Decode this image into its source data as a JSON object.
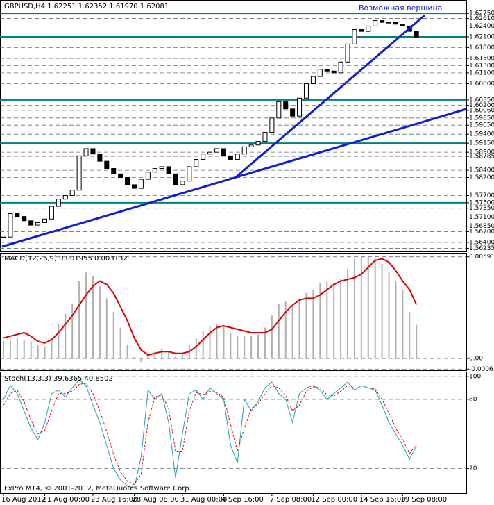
{
  "chart_data": [
    {
      "type": "price",
      "title": "GBPUSD,H4  1.62251 1.62352 1.61970 1.62081",
      "annotation": "Возможная вершина",
      "color": "#000000",
      "values": [
        1.5655,
        1.572,
        1.5712,
        1.57,
        1.5688,
        1.5695,
        1.5705,
        1.574,
        1.576,
        1.577,
        1.5785,
        1.588,
        1.59,
        1.5885,
        1.5865,
        1.5845,
        1.583,
        1.582,
        1.58,
        1.579,
        1.5815,
        1.5835,
        1.5845,
        1.585,
        1.583,
        1.58,
        1.581,
        1.585,
        1.587,
        1.5885,
        1.589,
        1.59,
        1.588,
        1.587,
        1.5885,
        1.5905,
        1.591,
        1.592,
        1.5945,
        1.5985,
        1.603,
        1.601,
        1.599,
        1.604,
        1.608,
        1.61,
        1.612,
        1.6115,
        1.611,
        1.614,
        1.619,
        1.623,
        1.6225,
        1.624,
        1.6255,
        1.625,
        1.625,
        1.6245,
        1.624,
        1.6225,
        1.6208
      ],
      "ylim": [
        1.5615,
        1.631
      ],
      "yticks": [
        {
          "value": 1.6275,
          "label": "1.62750"
        },
        {
          "value": 1.6261,
          "label": "1.62610"
        },
        {
          "value": 1.624,
          "label": "1.62400"
        },
        {
          "value": 1.621,
          "label": "1.62100"
        },
        {
          "value": 1.618,
          "label": "1.61800"
        },
        {
          "value": 1.615,
          "label": "1.61500"
        },
        {
          "value": 1.613,
          "label": "1.61300"
        },
        {
          "value": 1.611,
          "label": "1.61100"
        },
        {
          "value": 1.608,
          "label": "1.60800"
        },
        {
          "value": 1.6035,
          "label": "1.60350"
        },
        {
          "value": 1.602,
          "label": "1.60200"
        },
        {
          "value": 1.6006,
          "label": "1.60060"
        },
        {
          "value": 1.5985,
          "label": "1.59850"
        },
        {
          "value": 1.5965,
          "label": "1.59650"
        },
        {
          "value": 1.594,
          "label": "1.59400"
        },
        {
          "value": 1.5915,
          "label": "1.59150"
        },
        {
          "value": 1.589,
          "label": "1.58900"
        },
        {
          "value": 1.58785,
          "label": "1.58785"
        },
        {
          "value": 1.584,
          "label": "1.58400"
        },
        {
          "value": 1.582,
          "label": "1.58200"
        },
        {
          "value": 1.577,
          "label": "1.57700"
        },
        {
          "value": 1.575,
          "label": "1.57500"
        },
        {
          "value": 1.5735,
          "label": "1.57350"
        },
        {
          "value": 1.571,
          "label": "1.57100"
        },
        {
          "value": 1.5685,
          "label": "1.56850"
        },
        {
          "value": 1.567,
          "label": "1.56700"
        },
        {
          "value": 1.564,
          "label": "1.56400"
        },
        {
          "value": 1.56235,
          "label": "1.56235"
        }
      ],
      "levels": [
        1.6275,
        1.621,
        1.6035,
        1.5915,
        1.575
      ],
      "level_color": "#008080"
    },
    {
      "type": "macd",
      "title": "MACD(12,26,9) 0.001955 0.003132",
      "series": [
        {
          "color": "#b0b0b0",
          "values": [
            0.001,
            0.0011,
            0.0012,
            0.0011,
            0.001,
            0.0008,
            0.0007,
            0.0012,
            0.002,
            0.0026,
            0.0032,
            0.0045,
            0.005,
            0.0048,
            0.0042,
            0.0035,
            0.0027,
            0.0018,
            0.0008,
            0.0001,
            -0.0002,
            0.0002,
            0.0004,
            0.0006,
            0.0004,
            0.0001,
            0.0003,
            0.0008,
            0.0012,
            0.0016,
            0.0019,
            0.002,
            0.0019,
            0.0015,
            0.0013,
            0.0013,
            0.0013,
            0.0014,
            0.0018,
            0.0025,
            0.0032,
            0.0033,
            0.0031,
            0.0034,
            0.0038,
            0.004,
            0.0044,
            0.0045,
            0.0044,
            0.0046,
            0.0052,
            0.0058,
            0.0059,
            0.0059,
            0.0058,
            0.0055,
            0.005,
            0.0045,
            0.004,
            0.0027,
            0.001955
          ]
        },
        {
          "color": "#e00000",
          "values": [
            0.0012,
            0.0013,
            0.0014,
            0.0015,
            0.0013,
            0.001,
            0.0009,
            0.0011,
            0.0015,
            0.002,
            0.0025,
            0.0031,
            0.0037,
            0.0042,
            0.0045,
            0.0043,
            0.0038,
            0.003,
            0.0022,
            0.0012,
            0.0005,
            0.0002,
            0.0003,
            0.0004,
            0.0004,
            0.0003,
            0.0003,
            0.0004,
            0.0007,
            0.0011,
            0.0015,
            0.0018,
            0.0019,
            0.0018,
            0.0017,
            0.0016,
            0.0015,
            0.0015,
            0.0015,
            0.0017,
            0.0022,
            0.0027,
            0.0031,
            0.0034,
            0.0035,
            0.0035,
            0.0037,
            0.004,
            0.0043,
            0.0045,
            0.0046,
            0.0047,
            0.0049,
            0.0053,
            0.0057,
            0.0058,
            0.0056,
            0.0051,
            0.0045,
            0.004,
            0.003132
          ]
        }
      ],
      "ylim": [
        -0.00068,
        0.0061
      ],
      "yticks": [
        {
          "value": 0.00591,
          "label": "0.00591"
        },
        {
          "value": 0,
          "label": "0.00"
        },
        {
          "value": -0.00061,
          "label": "-0.00061"
        }
      ]
    },
    {
      "type": "line",
      "title": "Stoch(13,3,3) 39.6365 40.8502",
      "annotation": "FxPro MT4, © 2001-2012, MetaQuotes Software Corp.",
      "series": [
        {
          "color": "#20a0b0",
          "values": [
            80,
            92,
            85,
            70,
            55,
            45,
            60,
            85,
            88,
            82,
            90,
            97,
            92,
            75,
            60,
            40,
            20,
            10,
            5,
            3,
            30,
            88,
            80,
            85,
            60,
            12,
            50,
            85,
            88,
            80,
            90,
            85,
            80,
            40,
            25,
            80,
            70,
            78,
            90,
            95,
            85,
            80,
            60,
            85,
            90,
            92,
            88,
            80,
            85,
            90,
            95,
            88,
            92,
            90,
            88,
            75,
            60,
            50,
            40,
            28,
            39.6365
          ]
        },
        {
          "color": "#e00000",
          "dashed": true,
          "values": [
            75,
            85,
            88,
            78,
            62,
            50,
            53,
            70,
            85,
            85,
            87,
            93,
            94,
            85,
            70,
            52,
            32,
            17,
            9,
            6,
            15,
            60,
            82,
            84,
            72,
            35,
            35,
            70,
            86,
            84,
            87,
            86,
            82,
            58,
            35,
            55,
            72,
            76,
            85,
            92,
            90,
            83,
            70,
            75,
            87,
            91,
            90,
            84,
            83,
            87,
            92,
            90,
            90,
            90,
            89,
            80,
            68,
            55,
            45,
            33,
            40.8502
          ]
        }
      ],
      "ylim": [
        -1.5,
        103.5
      ],
      "yticks": [
        100,
        80,
        20
      ],
      "categories": [
        "16 Aug 2012",
        null,
        null,
        null,
        null,
        null,
        "21 Aug 00:00",
        null,
        null,
        null,
        null,
        null,
        null,
        "23 Aug 16:00",
        null,
        null,
        null,
        null,
        null,
        "28 Aug 08:00",
        null,
        null,
        null,
        null,
        null,
        null,
        "31 Aug 00:00",
        null,
        null,
        null,
        null,
        null,
        "4 Sep 16:00",
        null,
        null,
        null,
        null,
        null,
        null,
        "7 Sep 08:00",
        null,
        null,
        null,
        null,
        null,
        "12 Sep 00:00",
        null,
        null,
        null,
        null,
        null,
        null,
        "14 Sep 16:00",
        null,
        null,
        null,
        null,
        null,
        "19 Sep 08:00",
        null,
        null
      ]
    }
  ]
}
